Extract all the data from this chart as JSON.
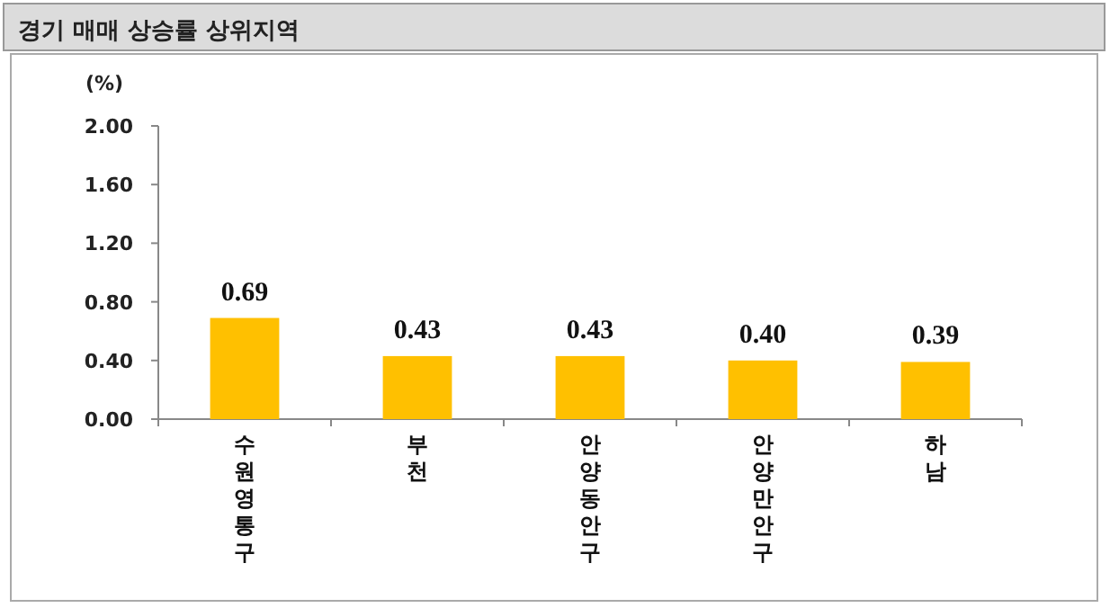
{
  "chart_data": {
    "type": "bar",
    "title": "경기 매매 상승률 상위지역",
    "ylabel": "(%)",
    "categories": [
      "수원영통구",
      "부천",
      "안양동안구",
      "안양만안구",
      "하남"
    ],
    "values": [
      0.69,
      0.43,
      0.43,
      0.4,
      0.39
    ],
    "value_labels": [
      "0.69",
      "0.43",
      "0.43",
      "0.40",
      "0.39"
    ],
    "color": "#ffc000",
    "ylim": [
      0,
      2
    ],
    "yticks": [
      {
        "value": 0,
        "label": "0.00"
      },
      {
        "value": 0.4,
        "label": "0.40"
      },
      {
        "value": 0.8,
        "label": "0.80"
      },
      {
        "value": 1.2,
        "label": "1.20"
      },
      {
        "value": 1.6,
        "label": "1.60"
      },
      {
        "value": 2,
        "label": "2.00"
      }
    ]
  }
}
